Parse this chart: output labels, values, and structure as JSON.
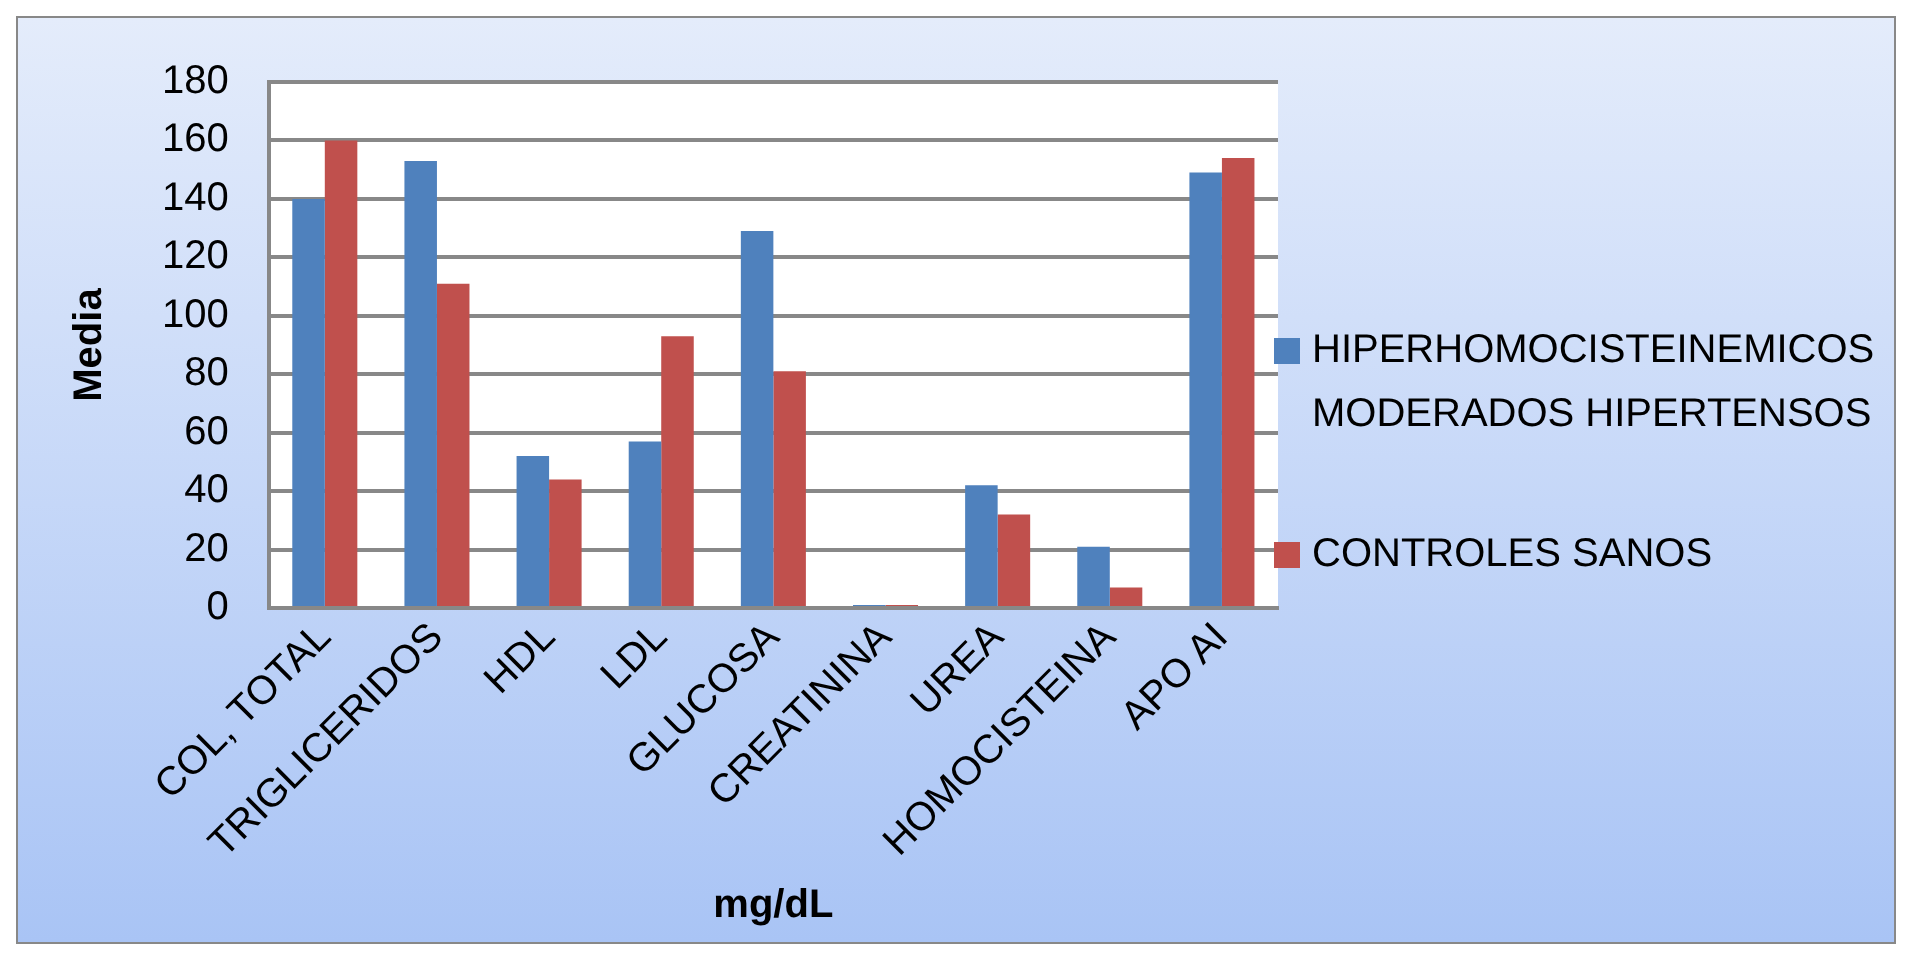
{
  "chart_data": {
    "type": "bar",
    "xlabel": "mg/dL",
    "ylabel": "Media",
    "categories": [
      "COL, TOTAL",
      "TRIGLICERIDOS",
      "HDL",
      "LDL",
      "GLUCOSA",
      "CREATININA",
      "UREA",
      "HOMOCISTEINA",
      "APO AI"
    ],
    "series": [
      {
        "name": "HIPERHOMOCISTEINEMICOS MODERADOS HIPERTENSOS",
        "color": "#4f81bd",
        "values": [
          140,
          153,
          52,
          57,
          129,
          1,
          42,
          21,
          149
        ]
      },
      {
        "name": "CONTROLES SANOS",
        "color": "#c0504d",
        "values": [
          160,
          111,
          44,
          93,
          81,
          1,
          32,
          7,
          154
        ]
      }
    ],
    "ylim": [
      0,
      180
    ],
    "yticks": [
      0,
      20,
      40,
      60,
      80,
      100,
      120,
      140,
      160,
      180
    ],
    "grid": "y",
    "legend": "right"
  }
}
